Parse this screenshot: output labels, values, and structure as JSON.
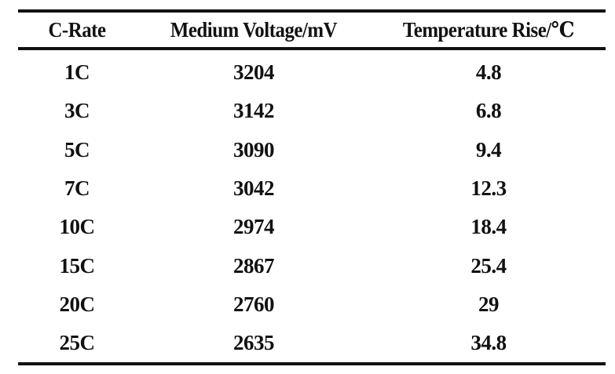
{
  "table": {
    "headers": [
      "C-Rate",
      "Medium Voltage/mV",
      "Temperature Rise/℃"
    ],
    "rows": [
      {
        "c_rate": "1C",
        "medium_voltage": "3204",
        "temperature_rise": "4.8"
      },
      {
        "c_rate": "3C",
        "medium_voltage": "3142",
        "temperature_rise": "6.8"
      },
      {
        "c_rate": "5C",
        "medium_voltage": "3090",
        "temperature_rise": "9.4"
      },
      {
        "c_rate": "7C",
        "medium_voltage": "3042",
        "temperature_rise": "12.3"
      },
      {
        "c_rate": "10C",
        "medium_voltage": "2974",
        "temperature_rise": "18.4"
      },
      {
        "c_rate": "15C",
        "medium_voltage": "2867",
        "temperature_rise": "25.4"
      },
      {
        "c_rate": "20C",
        "medium_voltage": "2760",
        "temperature_rise": "29"
      },
      {
        "c_rate": "25C",
        "medium_voltage": "2635",
        "temperature_rise": "34.8"
      }
    ]
  },
  "colors": {
    "text": "#111111",
    "rule": "#111111",
    "background": "#ffffff"
  }
}
